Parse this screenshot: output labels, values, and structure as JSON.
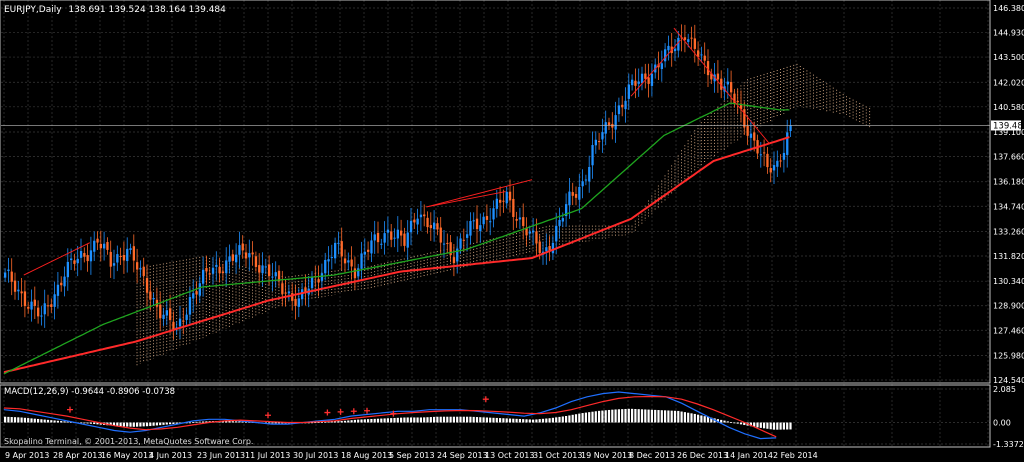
{
  "window": {
    "symbol_timeframe": "EURJPY,Daily",
    "ohlc_readout": "138.691 139.524 138.164 139.484"
  },
  "indicator": {
    "title": "MACD(12,26,9) -0.9644 -0.8906 -0.0738"
  },
  "copyright": "Skopalino Terminal, © 2001-2013, MetaQuotes Software Corp.",
  "colors": {
    "background": "#000000",
    "grid": "#3a3a3a",
    "frame": "#c0c0c0",
    "bull_candle": "#1e90ff",
    "bear_candle": "#ff6a2a",
    "ma_fast": "#1fa51f",
    "ma_slow": "#ff2a2a",
    "cloud": "#e8b890",
    "trend_lines": "#ff2020",
    "macd_histogram": "#ffffff",
    "macd_main": "#1f6fff",
    "macd_signal": "#ff2a2a",
    "price_marker": "#ffffff"
  },
  "chart_data": [
    {
      "type": "candlestick",
      "title": "EURJPY,Daily",
      "ylim": [
        124.54,
        146.38
      ],
      "y_tick_labels": [
        "146.380",
        "144.930",
        "143.500",
        "142.020",
        "140.580",
        "139.100",
        "137.660",
        "136.180",
        "134.740",
        "133.260",
        "131.820",
        "130.340",
        "128.900",
        "127.460",
        "125.980",
        "124.540"
      ],
      "current_price_label": "139.484",
      "x_tick_labels": [
        "9 Apr 2013",
        "28 Apr 2013",
        "16 May 2013",
        "4 Jun 2013",
        "23 Jun 2013",
        "11 Jul 2013",
        "30 Jul 2013",
        "18 Aug 2013",
        "5 Sep 2013",
        "24 Sep 2013",
        "13 Oct 2013",
        "31 Oct 2013",
        "19 Nov 2013",
        "8 Dec 2013",
        "26 Dec 2013",
        "14 Jan 2014",
        "2 Feb 2014"
      ],
      "series_close_anchors": [
        [
          0,
          130.6
        ],
        [
          6,
          129.4
        ],
        [
          11,
          128.1
        ],
        [
          18,
          130.9
        ],
        [
          24,
          131.9
        ],
        [
          28,
          132.8
        ],
        [
          32,
          131.3
        ],
        [
          37,
          132.4
        ],
        [
          42,
          130.2
        ],
        [
          47,
          128.7
        ],
        [
          52,
          127.3
        ],
        [
          56,
          129.4
        ],
        [
          62,
          130.9
        ],
        [
          68,
          131.6
        ],
        [
          74,
          132.1
        ],
        [
          79,
          130.8
        ],
        [
          84,
          130.1
        ],
        [
          89,
          129.0
        ],
        [
          94,
          130.6
        ],
        [
          100,
          132.2
        ],
        [
          106,
          131.1
        ],
        [
          111,
          132.4
        ],
        [
          116,
          133.4
        ],
        [
          121,
          132.5
        ],
        [
          125,
          134.6
        ],
        [
          130,
          133.2
        ],
        [
          136,
          132.0
        ],
        [
          142,
          133.6
        ],
        [
          148,
          134.5
        ],
        [
          152,
          135.2
        ],
        [
          156,
          134.0
        ],
        [
          160,
          132.7
        ],
        [
          163,
          131.9
        ],
        [
          167,
          133.4
        ],
        [
          171,
          135.0
        ],
        [
          175,
          136.2
        ],
        [
          178,
          138.0
        ],
        [
          182,
          139.2
        ],
        [
          186,
          140.6
        ],
        [
          190,
          141.7
        ],
        [
          194,
          142.4
        ],
        [
          198,
          143.0
        ],
        [
          202,
          143.9
        ],
        [
          206,
          145.1
        ],
        [
          208,
          144.2
        ],
        [
          212,
          142.9
        ],
        [
          216,
          142.3
        ],
        [
          219,
          141.5
        ],
        [
          222,
          140.6
        ],
        [
          225,
          139.4
        ],
        [
          228,
          138.1
        ],
        [
          231,
          136.8
        ],
        [
          234,
          137.3
        ],
        [
          238,
          139.48
        ]
      ],
      "ma_slow_anchors": [
        [
          0,
          125.0
        ],
        [
          40,
          126.8
        ],
        [
          80,
          129.2
        ],
        [
          120,
          130.9
        ],
        [
          160,
          131.7
        ],
        [
          190,
          134.0
        ],
        [
          215,
          137.4
        ],
        [
          238,
          138.8
        ]
      ],
      "ma_fast_anchors": [
        [
          0,
          124.9
        ],
        [
          30,
          127.8
        ],
        [
          60,
          130.0
        ],
        [
          100,
          130.7
        ],
        [
          140,
          132.2
        ],
        [
          175,
          134.6
        ],
        [
          200,
          138.9
        ],
        [
          220,
          140.8
        ],
        [
          235,
          140.4
        ]
      ],
      "cloud_upper_anchors": [
        [
          40,
          131.1
        ],
        [
          60,
          131.8
        ],
        [
          85,
          130.6
        ],
        [
          110,
          131.2
        ],
        [
          140,
          132.5
        ],
        [
          165,
          133.6
        ],
        [
          190,
          133.6
        ],
        [
          210,
          139.5
        ],
        [
          225,
          142.2
        ],
        [
          240,
          143.1
        ],
        [
          255,
          141.2
        ],
        [
          262,
          140.5
        ]
      ],
      "cloud_lower_anchors": [
        [
          40,
          125.4
        ],
        [
          60,
          127.0
        ],
        [
          85,
          129.0
        ],
        [
          110,
          129.9
        ],
        [
          140,
          131.1
        ],
        [
          165,
          132.3
        ],
        [
          190,
          133.1
        ],
        [
          210,
          137.0
        ],
        [
          225,
          139.0
        ],
        [
          240,
          140.6
        ],
        [
          255,
          140.1
        ],
        [
          262,
          139.3
        ]
      ],
      "trend_line_segments": [
        [
          [
            6,
            130.7
          ],
          [
            26,
            132.6
          ]
        ],
        [
          [
            128,
            134.7
          ],
          [
            160,
            136.3
          ]
        ],
        [
          [
            128,
            134.7
          ],
          [
            152,
            135.6
          ]
        ],
        [
          [
            190,
            141.2
          ],
          [
            205,
            144.5
          ]
        ],
        [
          [
            203,
            145.2
          ],
          [
            232,
            138.4
          ]
        ]
      ]
    },
    {
      "type": "bar",
      "title": "MACD(12,26,9) -0.9644 -0.8906 -0.0738",
      "ylim": [
        -1.3372,
        2.085
      ],
      "y_tick_labels": [
        "2.085",
        "0.00",
        "-1.3372"
      ],
      "main_values": [
        0.8,
        0.7,
        0.5,
        0.3,
        0.1,
        -0.1,
        -0.3,
        -0.5,
        -0.6,
        -0.5,
        -0.3,
        -0.1,
        0.1,
        0.2,
        0.2,
        0.1,
        0.0,
        -0.1,
        -0.1,
        0.0,
        0.1,
        0.2,
        0.4,
        0.5,
        0.6,
        0.7,
        0.7,
        0.8,
        0.8,
        0.8,
        0.7,
        0.6,
        0.5,
        0.4,
        0.6,
        0.9,
        1.3,
        1.6,
        1.8,
        1.9,
        1.8,
        1.7,
        1.6,
        1.2,
        0.7,
        0.2,
        -0.3,
        -0.7,
        -1.0,
        -0.96
      ],
      "signal_values": [
        0.9,
        0.85,
        0.7,
        0.55,
        0.4,
        0.2,
        0.0,
        -0.2,
        -0.35,
        -0.45,
        -0.4,
        -0.3,
        -0.15,
        0.0,
        0.1,
        0.15,
        0.1,
        0.05,
        0.0,
        0.0,
        0.05,
        0.1,
        0.25,
        0.35,
        0.45,
        0.55,
        0.62,
        0.68,
        0.72,
        0.75,
        0.74,
        0.7,
        0.65,
        0.58,
        0.55,
        0.62,
        0.8,
        1.05,
        1.3,
        1.5,
        1.6,
        1.62,
        1.6,
        1.45,
        1.15,
        0.8,
        0.4,
        0.0,
        -0.45,
        -0.89
      ],
      "signal_markers": [
        [
          20,
          0.8
        ],
        [
          80,
          0.45
        ],
        [
          98,
          0.62
        ],
        [
          102,
          0.66
        ],
        [
          106,
          0.7
        ],
        [
          110,
          0.73
        ],
        [
          118,
          0.55
        ],
        [
          146,
          1.45
        ]
      ]
    }
  ]
}
